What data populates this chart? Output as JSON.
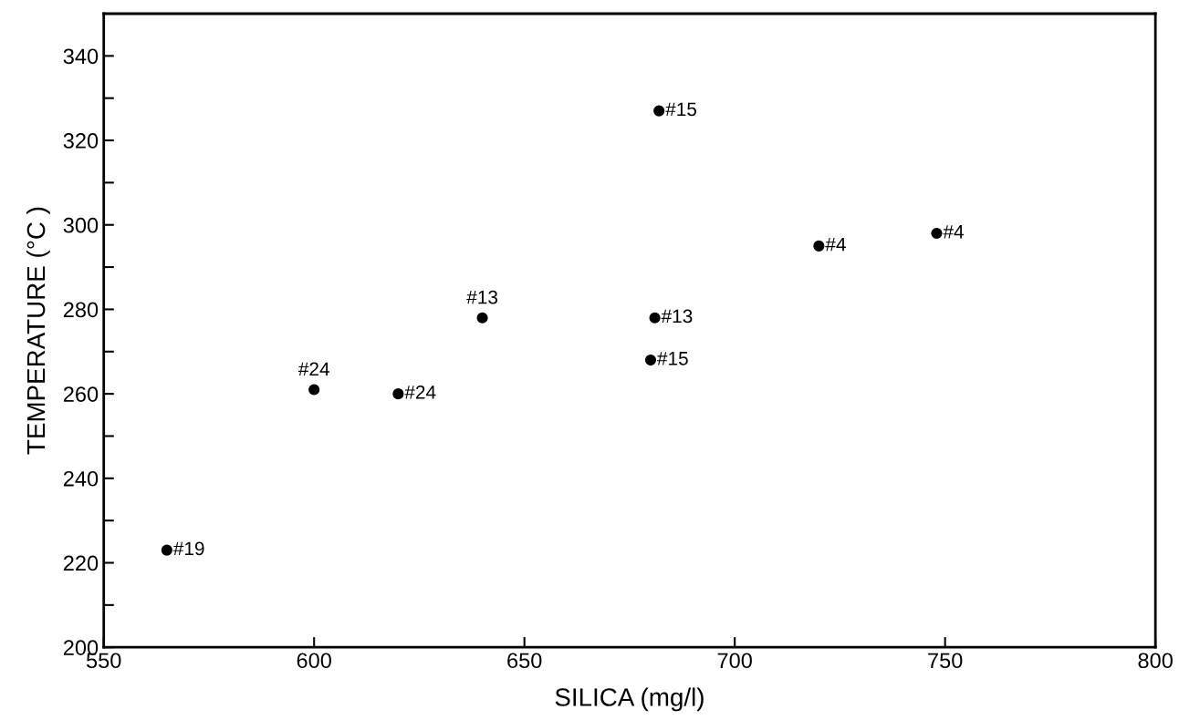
{
  "chart_data": {
    "type": "scatter",
    "xlabel": "SILICA (mg/l)",
    "ylabel": "TEMPERATURE (°C )",
    "x": [
      565,
      600,
      620,
      640,
      681,
      680,
      682,
      720,
      748
    ],
    "series": [
      {
        "color": "#000000",
        "values": [
          223,
          261,
          260,
          278,
          278,
          268,
          327,
          295,
          298
        ]
      }
    ],
    "marker": "circle",
    "grid": false,
    "legend": false,
    "xlim": [
      550,
      800
    ],
    "xticks": [
      550,
      600,
      650,
      700,
      750,
      800
    ],
    "ylim": [
      200,
      350
    ],
    "yticks": [
      200,
      {
        "value": 210,
        "label": null
      },
      220,
      {
        "value": 230,
        "label": null
      },
      240,
      {
        "value": 250,
        "label": null
      },
      260,
      {
        "value": 270,
        "label": null
      },
      280,
      {
        "value": 290,
        "label": null
      },
      300,
      {
        "value": 310,
        "label": null
      },
      320,
      {
        "value": 330,
        "label": null
      },
      340
    ],
    "annotations": [
      {
        "text": "#19",
        "x": 565,
        "y": 223
      },
      {
        "text": "#24",
        "x": 600,
        "y": 261
      },
      {
        "text": "#24",
        "x": 620,
        "y": 260
      },
      {
        "text": "#13",
        "x": 640,
        "y": 278
      },
      {
        "text": "#13",
        "x": 681,
        "y": 278
      },
      {
        "text": "#15",
        "x": 680,
        "y": 268
      },
      {
        "text": "#15",
        "x": 682,
        "y": 327
      },
      {
        "text": "#4",
        "x": 720,
        "y": 295
      },
      {
        "text": "#4",
        "x": 748,
        "y": 298
      }
    ]
  }
}
